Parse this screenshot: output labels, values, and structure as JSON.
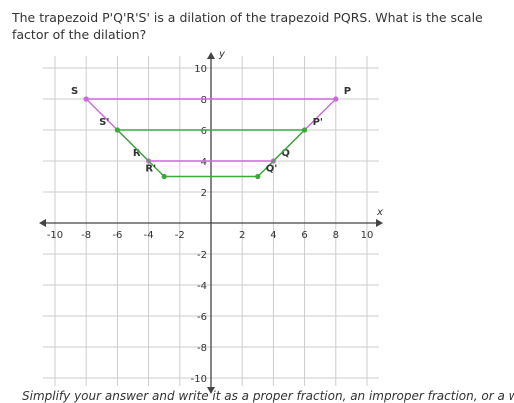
{
  "question": "The trapezoid P'Q'R'S' is a dilation of the trapezoid PQRS. What is the scale factor of the dilation?",
  "graph": {
    "x_label": "x",
    "y_label": "y",
    "xlim": [
      -10,
      10
    ],
    "ylim": [
      -10,
      10
    ],
    "xticks": [
      -10,
      -8,
      -6,
      -4,
      -2,
      2,
      4,
      6,
      8,
      10
    ],
    "yticks": [
      10,
      8,
      6,
      4,
      2,
      -2,
      -4,
      -6,
      -8,
      -10
    ],
    "shapes": [
      {
        "color": "#cc66dd",
        "points": [
          {
            "label": "P",
            "x": 8,
            "y": 8
          },
          {
            "label": "Q",
            "x": 4,
            "y": 4
          },
          {
            "label": "R",
            "x": -4,
            "y": 4
          },
          {
            "label": "S",
            "x": -8,
            "y": 8
          }
        ]
      },
      {
        "color": "#3aa93a",
        "points": [
          {
            "label": "P'",
            "x": 6,
            "y": 6
          },
          {
            "label": "Q'",
            "x": 3,
            "y": 3
          },
          {
            "label": "R'",
            "x": -3,
            "y": 3
          },
          {
            "label": "S'",
            "x": -6,
            "y": 6
          }
        ]
      }
    ]
  },
  "footer": "Simplify your answer and write it as a proper fraction, an improper fraction, or a whole"
}
